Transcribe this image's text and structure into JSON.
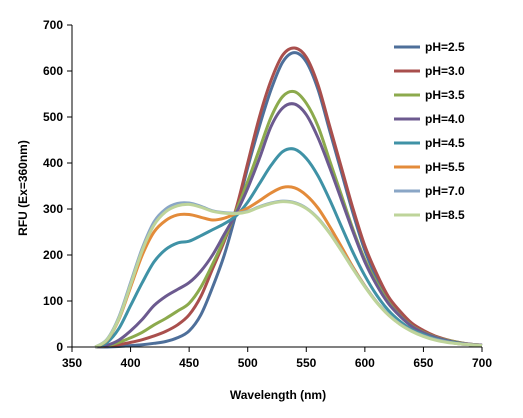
{
  "chart_data": {
    "type": "line",
    "title": "",
    "xlabel": "Wavelength  (nm)",
    "ylabel": "RFU (Ex=360nm)",
    "xlim": [
      350,
      700
    ],
    "ylim": [
      0,
      700
    ],
    "xticks": [
      "350",
      "400",
      "450",
      "500",
      "550",
      "600",
      "650",
      "700"
    ],
    "yticks": [
      "0",
      "100",
      "200",
      "300",
      "400",
      "500",
      "600",
      "700"
    ],
    "grid": false,
    "legend_position": "top-right",
    "x": [
      370,
      380,
      390,
      400,
      410,
      420,
      430,
      440,
      450,
      460,
      470,
      480,
      490,
      500,
      510,
      520,
      530,
      540,
      550,
      560,
      570,
      580,
      590,
      600,
      610,
      620,
      630,
      640,
      650,
      660,
      670,
      680,
      690,
      700
    ],
    "series": [
      {
        "name": "pH=2.5",
        "color": "#4e6f9a",
        "values": [
          0,
          0,
          1,
          3,
          5,
          8,
          12,
          20,
          35,
          70,
          130,
          200,
          290,
          390,
          480,
          560,
          620,
          640,
          620,
          560,
          470,
          380,
          290,
          210,
          150,
          100,
          70,
          45,
          30,
          20,
          13,
          8,
          5,
          3
        ]
      },
      {
        "name": "pH=3.0",
        "color": "#a94f4d",
        "values": [
          0,
          2,
          5,
          10,
          16,
          24,
          34,
          48,
          70,
          110,
          170,
          230,
          300,
          400,
          500,
          580,
          635,
          650,
          630,
          570,
          480,
          390,
          300,
          220,
          160,
          110,
          78,
          52,
          36,
          24,
          16,
          10,
          6,
          4
        ]
      },
      {
        "name": "pH=3.5",
        "color": "#8caa4d",
        "values": [
          0,
          3,
          10,
          20,
          32,
          48,
          62,
          78,
          95,
          130,
          180,
          235,
          295,
          360,
          430,
          500,
          545,
          555,
          530,
          480,
          405,
          330,
          255,
          190,
          140,
          98,
          68,
          46,
          32,
          22,
          15,
          10,
          6,
          4
        ]
      },
      {
        "name": "pH=4.0",
        "color": "#6c5a8f",
        "values": [
          0,
          4,
          15,
          35,
          60,
          90,
          110,
          125,
          140,
          165,
          200,
          245,
          290,
          345,
          410,
          480,
          520,
          528,
          505,
          455,
          390,
          320,
          250,
          185,
          135,
          95,
          67,
          45,
          31,
          21,
          14,
          9,
          6,
          4
        ]
      },
      {
        "name": "pH=4.5",
        "color": "#3f92a6",
        "values": [
          0,
          10,
          40,
          90,
          140,
          185,
          212,
          226,
          230,
          242,
          255,
          268,
          285,
          315,
          355,
          395,
          425,
          430,
          410,
          372,
          320,
          262,
          205,
          155,
          113,
          80,
          56,
          38,
          27,
          18,
          12,
          8,
          5,
          3
        ]
      },
      {
        "name": "pH=5.5",
        "color": "#e38b3a",
        "values": [
          0,
          15,
          60,
          130,
          200,
          250,
          275,
          287,
          288,
          282,
          276,
          280,
          290,
          302,
          318,
          335,
          347,
          346,
          330,
          302,
          262,
          218,
          173,
          133,
          98,
          70,
          50,
          35,
          24,
          16,
          11,
          7,
          5,
          3
        ]
      },
      {
        "name": "pH=7.0",
        "color": "#8aa6c6",
        "values": [
          0,
          17,
          65,
          140,
          215,
          272,
          300,
          312,
          313,
          306,
          296,
          292,
          291,
          295,
          305,
          313,
          317,
          314,
          302,
          280,
          248,
          210,
          170,
          132,
          98,
          71,
          50,
          35,
          24,
          16,
          11,
          7,
          5,
          3
        ]
      },
      {
        "name": "pH=8.5",
        "color": "#bed49a",
        "values": [
          0,
          16,
          62,
          135,
          210,
          265,
          294,
          307,
          310,
          304,
          295,
          291,
          290,
          294,
          304,
          312,
          316,
          313,
          301,
          279,
          247,
          209,
          169,
          131,
          97,
          70,
          49,
          34,
          23,
          15,
          10,
          7,
          5,
          3
        ]
      }
    ]
  }
}
